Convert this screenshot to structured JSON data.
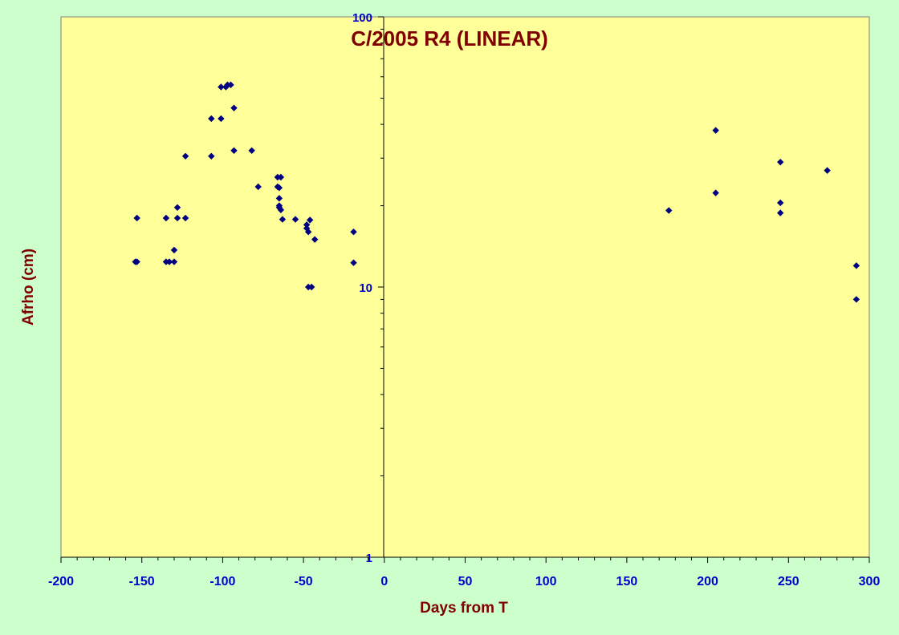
{
  "chart_data": {
    "type": "scatter",
    "title": "C/2005 R4 (LINEAR)",
    "xlabel": "Days from T",
    "ylabel": "Afrho (cm)",
    "xlim": [
      -200,
      300
    ],
    "ylim": [
      1,
      100
    ],
    "y_scale": "log",
    "x_ticks": [
      -200,
      -150,
      -100,
      -50,
      0,
      50,
      100,
      150,
      200,
      250,
      300
    ],
    "y_ticks": [
      1,
      10,
      100
    ],
    "grid": false,
    "legend": "none",
    "series": [
      {
        "marker": "diamond",
        "color": "#000080",
        "points": [
          [
            -154,
            12.4
          ],
          [
            -153,
            12.4
          ],
          [
            -153,
            18.0
          ],
          [
            -135,
            12.4
          ],
          [
            -133,
            12.4
          ],
          [
            -130,
            12.4
          ],
          [
            -135,
            18.0
          ],
          [
            -130,
            13.7
          ],
          [
            -128,
            18.0
          ],
          [
            -128,
            19.7
          ],
          [
            -123,
            18.0
          ],
          [
            -123,
            30.5
          ],
          [
            -107,
            30.5
          ],
          [
            -107,
            42.0
          ],
          [
            -101,
            42.0
          ],
          [
            -101,
            55.0
          ],
          [
            -98,
            55.0
          ],
          [
            -97,
            56.0
          ],
          [
            -95,
            56.0
          ],
          [
            -93,
            46.0
          ],
          [
            -93,
            32.0
          ],
          [
            -82,
            32.0
          ],
          [
            -78,
            23.5
          ],
          [
            -66,
            25.5
          ],
          [
            -64,
            25.5
          ],
          [
            -66,
            23.5
          ],
          [
            -65,
            23.3
          ],
          [
            -65,
            20.0
          ],
          [
            -65,
            21.3
          ],
          [
            -65,
            19.7
          ],
          [
            -64,
            19.3
          ],
          [
            -63,
            17.8
          ],
          [
            -55,
            17.8
          ],
          [
            -48,
            17.0
          ],
          [
            -48,
            16.5
          ],
          [
            -47,
            16.0
          ],
          [
            -46,
            17.7
          ],
          [
            -43,
            15.0
          ],
          [
            -47,
            10.0
          ],
          [
            -45,
            10.0
          ],
          [
            -19,
            12.3
          ],
          [
            -19,
            16.0
          ],
          [
            176,
            19.2
          ],
          [
            205,
            22.3
          ],
          [
            205,
            38.0
          ],
          [
            245,
            29.0
          ],
          [
            245,
            20.5
          ],
          [
            245,
            18.8
          ],
          [
            274,
            27.0
          ],
          [
            292,
            12.0
          ],
          [
            292,
            9.0
          ]
        ]
      }
    ]
  },
  "colors": {
    "page_background": "#ccffcc",
    "plot_background": "#ffff99",
    "marker": "#000080",
    "tick_labels": "#0000cc",
    "titles": "#800000"
  }
}
